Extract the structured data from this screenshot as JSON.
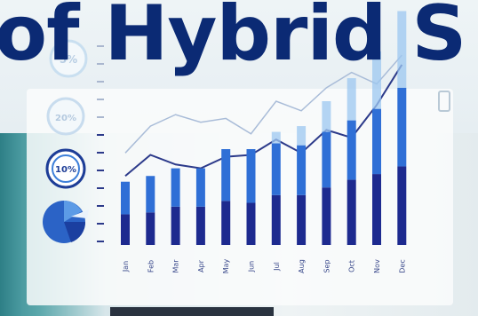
{
  "headline": {
    "text": "of Hybrid S"
  },
  "badges": [
    {
      "label": "5%"
    },
    {
      "label": "20%"
    },
    {
      "label": "10%"
    }
  ],
  "colors": {
    "title": "#0b2a74",
    "bar_dark": "#1d2a8f",
    "bar_mid": "#2f6fd6",
    "bar_light": "#9cc7f0",
    "line": "#2c3a8a"
  },
  "chart_data": {
    "type": "bar",
    "categories": [
      "Jan",
      "Feb",
      "Mar",
      "Apr",
      "May",
      "Jun",
      "Jul",
      "Aug",
      "Sep",
      "Oct",
      "Nov",
      "Dec"
    ],
    "series": [
      {
        "values": [
          16,
          17,
          20,
          20,
          23,
          22,
          26,
          26,
          30,
          34,
          37,
          41
        ]
      },
      {
        "values": [
          17,
          19,
          20,
          20,
          27,
          28,
          27,
          26,
          29,
          31,
          34,
          41
        ]
      },
      {
        "values": [
          0,
          0,
          0,
          0,
          0,
          0,
          6,
          10,
          16,
          22,
          30,
          40
        ]
      }
    ],
    "lines": [
      {
        "values": [
          36,
          47,
          42,
          40,
          46,
          47,
          55,
          48,
          60,
          56,
          73,
          94
        ]
      },
      {
        "values": [
          48,
          62,
          68,
          64,
          66,
          58,
          75,
          70,
          82,
          90,
          84,
          99
        ]
      }
    ],
    "ylim": [
      0,
      100
    ],
    "grid": false
  }
}
